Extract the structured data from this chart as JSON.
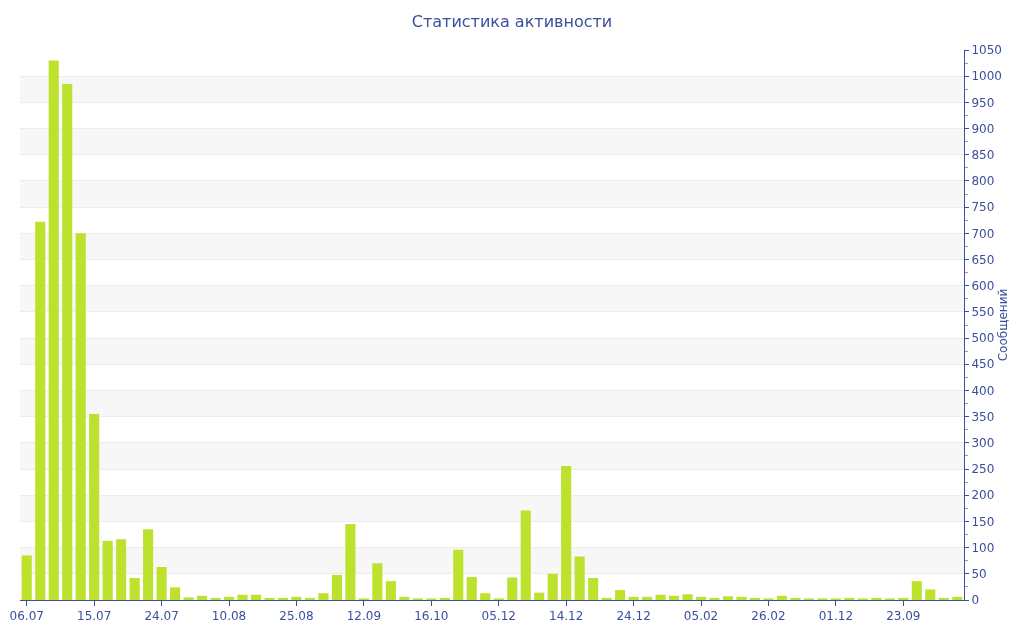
{
  "chart_data": {
    "type": "bar",
    "title": "Статистика активности",
    "ylabel": "Сообщений",
    "categories": [
      "06.07",
      null,
      null,
      null,
      null,
      "15.07",
      null,
      null,
      null,
      null,
      "24.07",
      null,
      null,
      null,
      null,
      "10.08",
      null,
      null,
      null,
      null,
      "25.08",
      null,
      null,
      null,
      null,
      "12.09",
      null,
      null,
      null,
      null,
      "16.10",
      null,
      null,
      null,
      null,
      "05.12",
      null,
      null,
      null,
      null,
      "14.12",
      null,
      null,
      null,
      null,
      "24.12",
      null,
      null,
      null,
      null,
      "05.02",
      null,
      null,
      null,
      null,
      "26.02",
      null,
      null,
      null,
      null,
      "01.12",
      null,
      null,
      null,
      null,
      "23.09",
      null,
      null,
      null,
      null
    ],
    "values": [
      85,
      722,
      1030,
      985,
      700,
      355,
      113,
      116,
      42,
      135,
      63,
      24,
      5,
      8,
      4,
      6,
      10,
      10,
      4,
      4,
      6,
      4,
      13,
      48,
      145,
      3,
      70,
      36,
      6,
      3,
      3,
      4,
      96,
      44,
      13,
      3,
      43,
      171,
      14,
      50,
      256,
      83,
      42,
      4,
      19,
      6,
      6,
      10,
      8,
      11,
      6,
      4,
      7,
      6,
      4,
      3,
      8,
      4,
      3,
      3,
      3,
      4,
      3,
      4,
      3,
      4,
      36,
      20,
      4,
      6
    ],
    "color": "#bce22e",
    "ylim": [
      0,
      1050
    ],
    "yticks": [
      0,
      50,
      100,
      150,
      200,
      250,
      300,
      350,
      400,
      450,
      500,
      550,
      600,
      650,
      700,
      750,
      800,
      850,
      900,
      950,
      1000,
      1050
    ],
    "grid": "y"
  }
}
